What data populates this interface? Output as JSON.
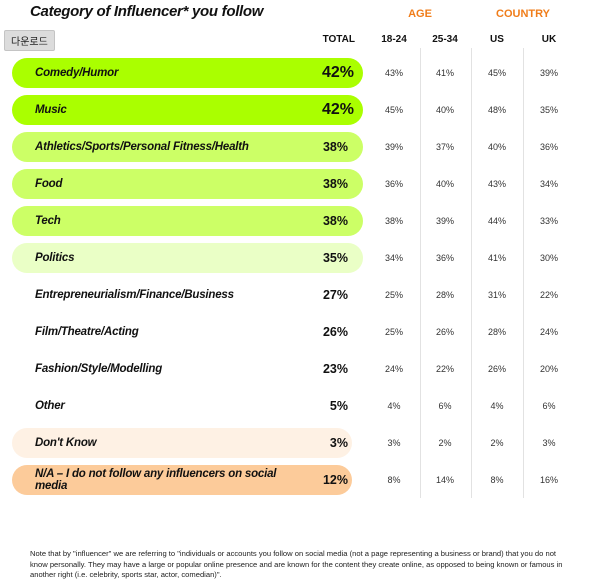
{
  "title": "Category of Influencer* you follow",
  "tooltip": "다운로드",
  "group_headers": {
    "age": "AGE",
    "country": "COUNTRY"
  },
  "column_headers": [
    "TOTAL",
    "18-24",
    "25-34",
    "US",
    "UK"
  ],
  "colors": {
    "accent": "#f07d1a",
    "lime_strong": "#aaff00",
    "lime_medium": "#ccff66",
    "lime_light": "#eaffc6",
    "peach_light": "#fef1e4",
    "peach": "#fccb9a"
  },
  "chart_data": {
    "type": "table",
    "columns": [
      "Category",
      "TOTAL",
      "18-24",
      "25-34",
      "US",
      "UK"
    ],
    "rows": [
      {
        "category": "Comedy/Humor",
        "total": "42%",
        "values": [
          "43%",
          "41%",
          "45%",
          "39%"
        ],
        "highlight": "lime_strong"
      },
      {
        "category": "Music",
        "total": "42%",
        "values": [
          "45%",
          "40%",
          "48%",
          "35%"
        ],
        "highlight": "lime_strong"
      },
      {
        "category": "Athletics/Sports/Personal Fitness/Health",
        "total": "38%",
        "values": [
          "39%",
          "37%",
          "40%",
          "36%"
        ],
        "highlight": "lime_medium"
      },
      {
        "category": "Food",
        "total": "38%",
        "values": [
          "36%",
          "40%",
          "43%",
          "34%"
        ],
        "highlight": "lime_medium"
      },
      {
        "category": "Tech",
        "total": "38%",
        "values": [
          "38%",
          "39%",
          "44%",
          "33%"
        ],
        "highlight": "lime_medium"
      },
      {
        "category": "Politics",
        "total": "35%",
        "values": [
          "34%",
          "36%",
          "41%",
          "30%"
        ],
        "highlight": "lime_light"
      },
      {
        "category": "Entrepreneurialism/Finance/Business",
        "total": "27%",
        "values": [
          "25%",
          "28%",
          "31%",
          "22%"
        ],
        "highlight": "none"
      },
      {
        "category": "Film/Theatre/Acting",
        "total": "26%",
        "values": [
          "25%",
          "26%",
          "28%",
          "24%"
        ],
        "highlight": "none"
      },
      {
        "category": "Fashion/Style/Modelling",
        "total": "23%",
        "values": [
          "24%",
          "22%",
          "26%",
          "20%"
        ],
        "highlight": "none"
      },
      {
        "category": "Other",
        "total": "5%",
        "values": [
          "4%",
          "6%",
          "4%",
          "6%"
        ],
        "highlight": "none"
      },
      {
        "category": "Don't Know",
        "total": "3%",
        "values": [
          "3%",
          "2%",
          "2%",
          "3%"
        ],
        "highlight": "peach_light"
      },
      {
        "category": "N/A – I do not follow any influencers on social media",
        "total": "12%",
        "values": [
          "8%",
          "14%",
          "8%",
          "16%"
        ],
        "highlight": "peach"
      }
    ]
  },
  "footnote": "Note that by \"influencer\" we are referring to \"individuals or accounts you follow on social media (not a page representing a business or brand) that you do not know personally. They may have a large or popular online presence and are known for the content they create online, as opposed to being known or famous in another right (i.e. celebrity, sports star, actor, comedian)\"."
}
